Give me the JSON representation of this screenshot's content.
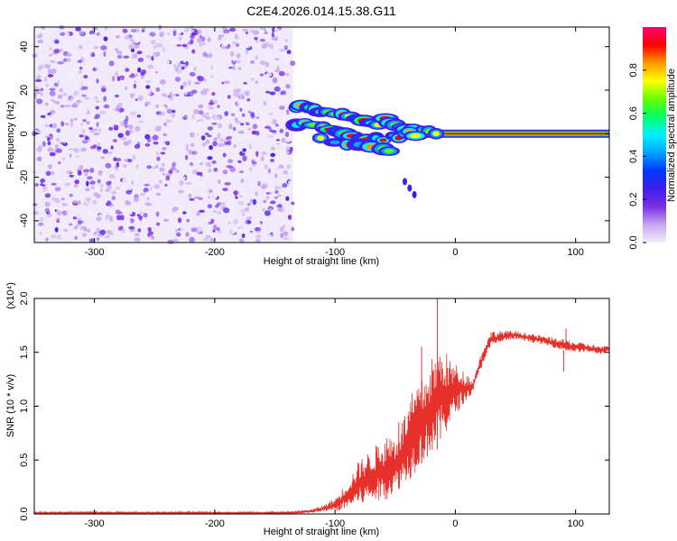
{
  "title": "C2E4.2026.014.15.38.G11",
  "chart_data": [
    {
      "type": "heatmap",
      "name": "spectrogram",
      "xlabel": "Height of straight line (km)",
      "ylabel": "Frequency (Hz)",
      "xlim": [
        -350,
        128
      ],
      "ylim": [
        -50,
        49
      ],
      "xticks": [
        -300,
        -200,
        -100,
        0,
        100
      ],
      "yticks": [
        -40,
        -20,
        0,
        20,
        40
      ],
      "noise_region_x": [
        -350,
        -135
      ],
      "signal_band_frequency_hz": 0,
      "signal_band_start_x": -40,
      "tail": [
        [
          -42,
          -22
        ],
        [
          -38,
          -25
        ],
        [
          -34,
          -28
        ]
      ],
      "fragments": [
        [
          -132,
          12
        ],
        [
          -128,
          13
        ],
        [
          -122,
          12
        ],
        [
          -117,
          11
        ],
        [
          -112,
          10
        ],
        [
          -106,
          10
        ],
        [
          -100,
          9
        ],
        [
          -94,
          9
        ],
        [
          -88,
          8
        ],
        [
          -82,
          7
        ],
        [
          -76,
          6
        ],
        [
          -70,
          5
        ],
        [
          -64,
          4
        ],
        [
          -58,
          7
        ],
        [
          -54,
          5
        ],
        [
          -50,
          4
        ],
        [
          -45,
          3
        ],
        [
          -40,
          2
        ],
        [
          -35,
          2
        ],
        [
          -28,
          1
        ],
        [
          -22,
          1
        ],
        [
          -16,
          0
        ],
        [
          -132,
          4
        ],
        [
          -125,
          5
        ],
        [
          -118,
          4
        ],
        [
          -110,
          3
        ],
        [
          -104,
          2
        ],
        [
          -98,
          1
        ],
        [
          -92,
          0
        ],
        [
          -86,
          -1
        ],
        [
          -80,
          -2
        ],
        [
          -74,
          -3
        ],
        [
          -66,
          -2
        ],
        [
          -60,
          -3
        ],
        [
          -52,
          -1
        ],
        [
          -47,
          -2
        ],
        [
          -42,
          0
        ],
        [
          -38,
          1
        ],
        [
          -33,
          -1
        ],
        [
          -112,
          -2
        ],
        [
          -100,
          -4
        ],
        [
          -90,
          -5
        ],
        [
          -80,
          -5
        ],
        [
          -70,
          -6
        ],
        [
          -60,
          -7
        ],
        [
          -55,
          -8
        ]
      ],
      "colorbar": {
        "label": "Normalized spectral amplitude",
        "ticks": [
          0.0,
          0.2,
          0.4,
          0.6,
          0.8
        ],
        "range": [
          0,
          1
        ],
        "colors": [
          "#f4eefc",
          "#c7a6ef",
          "#7b2fe6",
          "#3f1ee8",
          "#0038ff",
          "#00a5ff",
          "#00f0ff",
          "#00ff66",
          "#66ff00",
          "#ffff00",
          "#ff9900",
          "#ff0000",
          "#ff0077"
        ]
      }
    },
    {
      "type": "line",
      "name": "snr",
      "xlabel": "Height of straight line (km)",
      "ylabel": "SNR (10 * v/v)",
      "scale_note": "(x10⁴)",
      "xlim": [
        -350,
        128
      ],
      "ylim": [
        0.0,
        2.0
      ],
      "xticks": [
        -300,
        -200,
        -100,
        0,
        100
      ],
      "yticks": [
        0.0,
        0.5,
        1.0,
        1.5,
        2.0
      ],
      "series": [
        {
          "name": "SNR",
          "color": "#e8302a",
          "envelope": [
            [
              -350,
              0.0,
              0.02
            ],
            [
              -140,
              0.0,
              0.02
            ],
            [
              -120,
              0.01,
              0.04
            ],
            [
              -110,
              0.02,
              0.08
            ],
            [
              -100,
              0.02,
              0.15
            ],
            [
              -95,
              0.03,
              0.22
            ],
            [
              -90,
              0.05,
              0.3
            ],
            [
              -80,
              0.08,
              0.5
            ],
            [
              -70,
              0.1,
              0.6
            ],
            [
              -60,
              0.12,
              0.7
            ],
            [
              -55,
              0.15,
              0.75
            ],
            [
              -50,
              0.2,
              0.72
            ],
            [
              -45,
              0.25,
              0.85
            ],
            [
              -40,
              0.3,
              1.0
            ],
            [
              -35,
              0.35,
              1.15
            ],
            [
              -30,
              0.45,
              1.2
            ],
            [
              -25,
              0.5,
              1.3
            ],
            [
              -20,
              0.55,
              1.45
            ],
            [
              -15,
              0.6,
              1.5
            ],
            [
              -10,
              0.7,
              1.55
            ],
            [
              -5,
              0.8,
              1.45
            ],
            [
              0,
              0.9,
              1.4
            ],
            [
              5,
              1.0,
              1.35
            ],
            [
              10,
              1.05,
              1.3
            ],
            [
              15,
              1.15,
              1.25
            ],
            [
              20,
              1.3,
              1.45
            ],
            [
              25,
              1.45,
              1.6
            ],
            [
              30,
              1.55,
              1.7
            ],
            [
              40,
              1.6,
              1.7
            ],
            [
              50,
              1.62,
              1.7
            ],
            [
              60,
              1.6,
              1.68
            ],
            [
              70,
              1.58,
              1.66
            ],
            [
              80,
              1.55,
              1.64
            ],
            [
              90,
              1.52,
              1.62
            ],
            [
              100,
              1.5,
              1.6
            ],
            [
              110,
              1.5,
              1.58
            ],
            [
              120,
              1.48,
              1.56
            ],
            [
              128,
              1.5,
              1.56
            ]
          ],
          "spikes": [
            [
              -15,
              2.0
            ],
            [
              -28,
              1.55
            ],
            [
              -47,
              0.85
            ],
            [
              90,
              1.32
            ],
            [
              92,
              1.72
            ]
          ]
        }
      ]
    }
  ]
}
